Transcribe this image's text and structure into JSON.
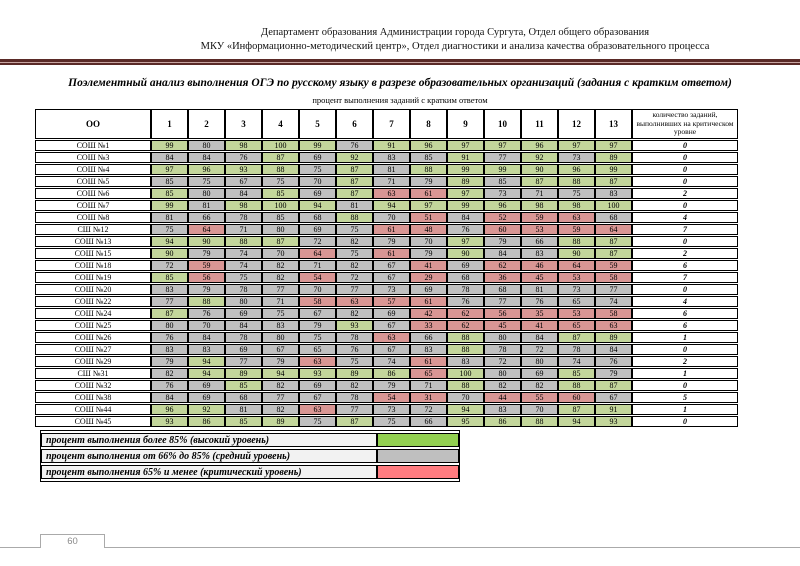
{
  "header": {
    "line1": "Департамент образования Администрации города Сургута, Отдел общего образования",
    "line2": "МКУ «Информационно-методический центр», Отдел диагностики и анализа качества образовательного процесса"
  },
  "title": "Поэлементный анализ выполнения ОГЭ по русскому языку в разрезе образовательных организаций (задания с кратким ответом)",
  "subtitle": "процент выполнения заданий с кратким ответом",
  "colors": {
    "cell_high_green": "#C3D69B",
    "cell_mid_gray": "#C0C0C0",
    "cell_critical_red": "#D99694",
    "separator_maroon": "#5A2A27"
  },
  "table": {
    "oo_header": "ОО",
    "task_columns": [
      "1",
      "2",
      "3",
      "4",
      "5",
      "6",
      "7",
      "8",
      "9",
      "10",
      "11",
      "12",
      "13"
    ],
    "critical_header": "количество заданий, выполнивших на критическом уровне",
    "rows": [
      {
        "label": "СОШ №1",
        "values": [
          99,
          80,
          98,
          100,
          99,
          76,
          91,
          96,
          97,
          97,
          96,
          97,
          97
        ],
        "colors": "gngggnggggggg",
        "critical_count": "0"
      },
      {
        "label": "СОШ №3",
        "values": [
          84,
          84,
          76,
          87,
          69,
          92,
          83,
          85,
          91,
          77,
          92,
          73,
          89
        ],
        "colors": "nnngngnngngng",
        "critical_count": "0"
      },
      {
        "label": "СОШ №4",
        "values": [
          97,
          96,
          93,
          88,
          75,
          87,
          81,
          88,
          99,
          99,
          90,
          96,
          99
        ],
        "colors": "ggggngngggggg",
        "critical_count": "0"
      },
      {
        "label": "СОШ №5",
        "values": [
          85,
          75,
          67,
          75,
          70,
          87,
          71,
          79,
          89,
          85,
          87,
          88,
          87
        ],
        "colors": "nnnnngnngnggg",
        "critical_count": "0"
      },
      {
        "label": "СОШ №6",
        "values": [
          85,
          80,
          84,
          85,
          69,
          87,
          63,
          61,
          97,
          73,
          71,
          75,
          83
        ],
        "colors": "gnngngrrgnnnn",
        "critical_count": "2"
      },
      {
        "label": "СОШ №7",
        "values": [
          99,
          81,
          98,
          100,
          94,
          81,
          94,
          97,
          99,
          96,
          98,
          98,
          100
        ],
        "colors": "gngggnggggggg",
        "critical_count": "0"
      },
      {
        "label": "СОШ №8",
        "values": [
          81,
          66,
          78,
          85,
          68,
          88,
          70,
          51,
          84,
          52,
          59,
          63,
          68
        ],
        "colors": "nnnnngnrnrrrn",
        "critical_count": "4"
      },
      {
        "label": "СШ №12",
        "values": [
          75,
          64,
          71,
          80,
          69,
          75,
          61,
          48,
          76,
          60,
          53,
          59,
          64
        ],
        "colors": "nrnnnnrrnrrrr",
        "critical_count": "7"
      },
      {
        "label": "СОШ №13",
        "values": [
          94,
          90,
          88,
          87,
          72,
          82,
          79,
          70,
          97,
          79,
          66,
          88,
          87
        ],
        "colors": "ggggnnnngnngg",
        "critical_count": "0"
      },
      {
        "label": "СОШ №15",
        "values": [
          90,
          79,
          74,
          70,
          64,
          75,
          61,
          79,
          90,
          84,
          83,
          90,
          87
        ],
        "colors": "gnnnrnrngnngg",
        "critical_count": "2"
      },
      {
        "label": "СОШ №18",
        "values": [
          72,
          59,
          74,
          82,
          71,
          82,
          67,
          41,
          69,
          62,
          46,
          64,
          59
        ],
        "colors": "nrnnnnnrnrrrr",
        "critical_count": "6"
      },
      {
        "label": "СОШ №19",
        "values": [
          85,
          56,
          75,
          82,
          54,
          72,
          67,
          29,
          68,
          36,
          45,
          53,
          58
        ],
        "colors": "grnnrnnrnrrrr",
        "critical_count": "7"
      },
      {
        "label": "СОШ №20",
        "values": [
          83,
          79,
          78,
          77,
          70,
          77,
          73,
          69,
          78,
          68,
          81,
          73,
          77
        ],
        "colors": "nnnnnnnnnnnnn",
        "critical_count": "0"
      },
      {
        "label": "СОШ №22",
        "values": [
          77,
          88,
          80,
          71,
          58,
          63,
          57,
          61,
          76,
          77,
          76,
          65,
          74
        ],
        "colors": "ngnnrrrrnnnnn",
        "critical_count": "4"
      },
      {
        "label": "СОШ №24",
        "values": [
          87,
          76,
          69,
          75,
          67,
          82,
          69,
          42,
          62,
          56,
          35,
          53,
          58
        ],
        "colors": "gnnnnnnrrrrrr",
        "critical_count": "6"
      },
      {
        "label": "СОШ №25",
        "values": [
          80,
          70,
          84,
          83,
          79,
          93,
          67,
          33,
          62,
          45,
          41,
          65,
          63
        ],
        "colors": "nnnnngnrrrrrr",
        "critical_count": "6"
      },
      {
        "label": "СОШ №26",
        "values": [
          76,
          84,
          78,
          80,
          75,
          78,
          63,
          66,
          88,
          80,
          84,
          87,
          89
        ],
        "colors": "nnnnnnrngnngg",
        "critical_count": "1"
      },
      {
        "label": "СОШ №27",
        "values": [
          83,
          83,
          69,
          67,
          65,
          76,
          67,
          83,
          88,
          78,
          72,
          78,
          84
        ],
        "colors": "nnnnnnnngnnnn",
        "critical_count": "0"
      },
      {
        "label": "СОШ №29",
        "values": [
          79,
          94,
          77,
          79,
          63,
          75,
          74,
          61,
          83,
          72,
          80,
          74,
          76
        ],
        "colors": "ngnnrnnrnnnnn",
        "critical_count": "2"
      },
      {
        "label": "СШ №31",
        "values": [
          82,
          94,
          89,
          94,
          93,
          89,
          86,
          65,
          100,
          80,
          69,
          85,
          79
        ],
        "colors": "nggggggrgnngn",
        "critical_count": "1"
      },
      {
        "label": "СОШ №32",
        "values": [
          76,
          69,
          85,
          82,
          69,
          82,
          79,
          71,
          88,
          82,
          82,
          88,
          87
        ],
        "colors": "nngnnnnngnngg",
        "critical_count": "0"
      },
      {
        "label": "СОШ №38",
        "values": [
          84,
          69,
          68,
          77,
          67,
          78,
          54,
          31,
          70,
          44,
          55,
          60,
          67
        ],
        "colors": "nnnnnnrrnrrrn",
        "critical_count": "5"
      },
      {
        "label": "СОШ №44",
        "values": [
          96,
          92,
          81,
          82,
          63,
          77,
          73,
          72,
          94,
          83,
          70,
          87,
          91
        ],
        "colors": "ggnnrnnngnngg",
        "critical_count": "1"
      },
      {
        "label": "СОШ №45",
        "values": [
          93,
          86,
          85,
          89,
          75,
          87,
          75,
          66,
          95,
          86,
          88,
          94,
          93
        ],
        "colors": "ggggngnnggggg",
        "critical_count": "0"
      }
    ]
  },
  "legend": {
    "items": [
      {
        "label": "процент выполнения более 85% (высокий уровень)",
        "color": "#92D050"
      },
      {
        "label": "процент выполнения от 66% до 85% (средний уровень)",
        "color": "#BFBFBF"
      },
      {
        "label": "процент выполнения 65% и менее (критический уровень)",
        "color": "#FF7C80"
      }
    ]
  },
  "footer": {
    "page_number": "60"
  }
}
